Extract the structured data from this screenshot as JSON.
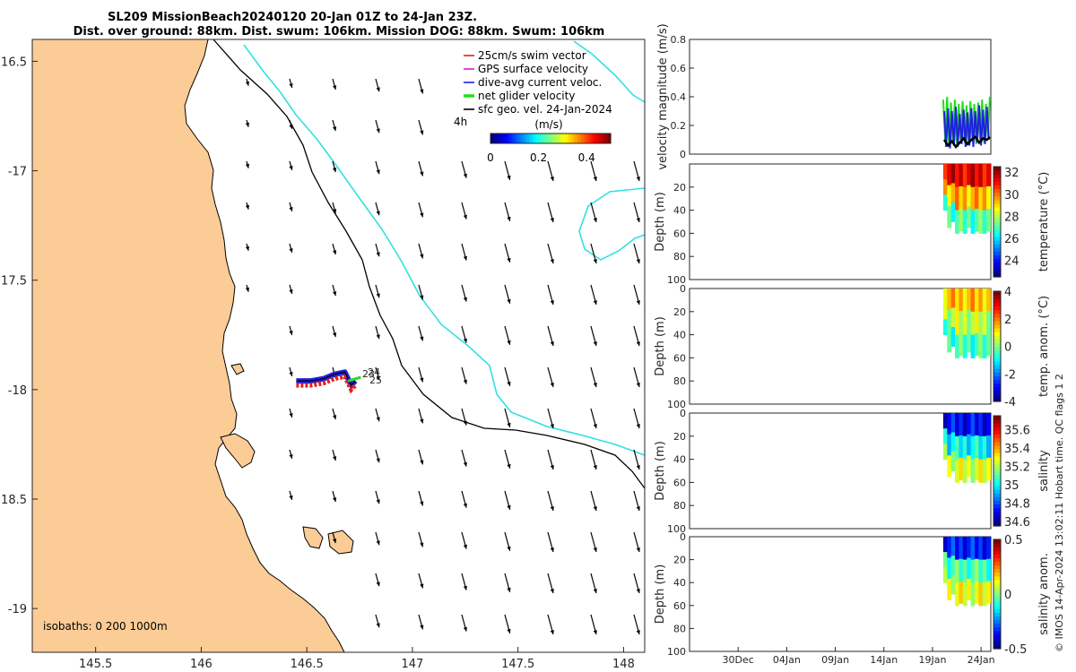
{
  "title": {
    "line1": "SL209 MissionBeach20240120 20-Jan 01Z to 24-Jan 23Z.",
    "line2": "Dist. over ground: 88km. Dist. swum: 106km. Mission DOG: 88km. Swum: 106km"
  },
  "colors": {
    "land": "#fccc96",
    "coast": "#000000",
    "isobath_cyan": "#33e0e0",
    "isobath_black": "#000000",
    "swim": "#e02020",
    "gps": "#d020d0",
    "dive": "#2020e0",
    "net": "#20e020",
    "geo": "#000000"
  },
  "chart_data": [
    {
      "type": "map",
      "xlim": [
        145.2,
        148.1
      ],
      "ylim": [
        -19.2,
        -16.4
      ],
      "ylim_display_labels": [
        "16.5",
        "-17",
        "17.5",
        "-18",
        "18.5",
        "-19"
      ],
      "ytick_values": [
        -16.5,
        -17,
        -17.5,
        -18,
        -18.5,
        -19
      ],
      "xtick_labels": [
        "145.5",
        "146",
        "146.5",
        "147",
        "147.5",
        "148"
      ],
      "xtick_values": [
        145.5,
        146,
        146.5,
        147,
        147.5,
        148
      ],
      "legend": [
        {
          "label": "25cm/s swim vector",
          "color_key": "swim"
        },
        {
          "label": "GPS surface velocity",
          "color_key": "gps"
        },
        {
          "label": "dive-avg current veloc.",
          "color_key": "dive"
        },
        {
          "label": "net glider velocity",
          "color_key": "net"
        },
        {
          "label": "sfc geo. vel. 24-Jan-2024",
          "color_key": "geo"
        }
      ],
      "legend_placement": "top-right",
      "colorbar": {
        "label": "(m/s)",
        "ticks": [
          "0",
          "0.2",
          "0.4"
        ],
        "range": [
          0,
          0.5
        ]
      },
      "annotation_4h": "4h",
      "track_labels": [
        "23",
        "24",
        "25"
      ],
      "isobath_note": "isobaths: 0   200  1000m",
      "vector_field": {
        "u": 0.08,
        "v": -0.22,
        "note": "sfc geo. vel. 24-Jan-2024"
      },
      "glider_track_lonlat": [
        [
          146.45,
          -17.96
        ],
        [
          146.52,
          -17.96
        ],
        [
          146.58,
          -17.95
        ],
        [
          146.63,
          -17.93
        ],
        [
          146.68,
          -17.92
        ],
        [
          146.71,
          -17.98
        ],
        [
          146.73,
          -17.96
        ]
      ]
    },
    {
      "type": "line",
      "ylabel": "velocity magnitude (m/s)",
      "ylim": [
        0,
        0.8
      ],
      "yticks": [
        "0",
        "0.2",
        "0.4",
        "0.6",
        "0.8"
      ],
      "xtick_labels": [
        "30Dec",
        "04Jan",
        "09Jan",
        "14Jan",
        "19Jan",
        "24Jan"
      ],
      "xtick_days": [
        -21,
        -16,
        -11,
        -6,
        -1,
        4
      ],
      "xlim_days": [
        -26,
        5
      ],
      "series": [
        {
          "color_key": "net",
          "x": [
            0.1,
            0.3,
            0.5,
            0.7,
            0.9,
            1.1,
            1.3,
            1.5,
            1.7,
            1.9,
            2.1,
            2.3,
            2.5,
            2.7,
            2.9,
            3.1,
            3.3,
            3.5,
            3.7,
            3.9,
            4.1,
            4.3,
            4.5,
            4.7,
            4.9
          ],
          "values": [
            0.38,
            0.1,
            0.4,
            0.05,
            0.36,
            0.08,
            0.38,
            0.06,
            0.35,
            0.1,
            0.37,
            0.08,
            0.34,
            0.06,
            0.37,
            0.1,
            0.35,
            0.07,
            0.36,
            0.1,
            0.38,
            0.08,
            0.35,
            0.12,
            0.4
          ]
        },
        {
          "color_key": "dive",
          "x": [
            0.2,
            0.4,
            0.6,
            0.8,
            1.0,
            1.2,
            1.4,
            1.6,
            1.8,
            2.0,
            2.2,
            2.4,
            2.6,
            2.8,
            3.0,
            3.2,
            3.4,
            3.6,
            3.8,
            4.0,
            4.2,
            4.4,
            4.6,
            4.8
          ],
          "values": [
            0.3,
            0.05,
            0.32,
            0.04,
            0.3,
            0.06,
            0.33,
            0.05,
            0.28,
            0.07,
            0.31,
            0.05,
            0.29,
            0.06,
            0.32,
            0.05,
            0.3,
            0.08,
            0.34,
            0.06,
            0.31,
            0.07,
            0.33,
            0.1
          ]
        },
        {
          "color_key": "geo",
          "x": [
            0.2,
            0.6,
            1.0,
            1.4,
            1.8,
            2.2,
            2.6,
            3.0,
            3.4,
            3.8,
            4.2,
            4.6,
            4.9
          ],
          "values": [
            0.1,
            0.06,
            0.09,
            0.05,
            0.08,
            0.11,
            0.07,
            0.1,
            0.12,
            0.08,
            0.11,
            0.1,
            0.12
          ]
        }
      ]
    },
    {
      "type": "heatmap",
      "ylabel": "Depth (m)",
      "yticks": [
        "20",
        "40",
        "60",
        "80",
        "100"
      ],
      "ylim": [
        0,
        100
      ],
      "colorbar": {
        "label": "temperature (°C)",
        "ticks": [
          "24",
          "26",
          "28",
          "30",
          "32"
        ],
        "range": [
          22.5,
          32.5
        ]
      },
      "max_depth_m": [
        40,
        55,
        50,
        60,
        58,
        60,
        55,
        60,
        58,
        60,
        60,
        58
      ],
      "values_top_to_bottom": [
        31.5,
        29.5,
        27.0
      ]
    },
    {
      "type": "heatmap",
      "ylabel": "Depth (m)",
      "yticks": [
        "0",
        "20",
        "40",
        "60",
        "80",
        "100"
      ],
      "ylim": [
        0,
        100
      ],
      "colorbar": {
        "label": "temp. anom. (°C)",
        "ticks": [
          "-4",
          "-2",
          "0",
          "2",
          "4"
        ],
        "range": [
          -4,
          4
        ]
      },
      "max_depth_m": [
        40,
        55,
        50,
        60,
        58,
        60,
        55,
        60,
        58,
        60,
        60,
        58
      ],
      "values_top_to_bottom": [
        1.5,
        0.5,
        -0.5
      ]
    },
    {
      "type": "heatmap",
      "ylabel": "Depth (m)",
      "yticks": [
        "0",
        "20",
        "40",
        "60",
        "80",
        "100"
      ],
      "ylim": [
        0,
        100
      ],
      "colorbar": {
        "label": "salinity",
        "ticks": [
          "34.6",
          "34.8",
          "35",
          "35.2",
          "35.4",
          "35.6"
        ],
        "range": [
          34.55,
          35.75
        ]
      },
      "max_depth_m": [
        40,
        55,
        50,
        60,
        58,
        60,
        55,
        60,
        58,
        60,
        60,
        58
      ],
      "values_top_to_bottom": [
        34.7,
        35.0,
        35.25
      ]
    },
    {
      "type": "heatmap",
      "ylabel": "Depth (m)",
      "yticks": [
        "0",
        "20",
        "40",
        "60",
        "80",
        "100"
      ],
      "ylim": [
        0,
        100
      ],
      "xtick_labels": [
        "30Dec",
        "04Jan",
        "09Jan",
        "14Jan",
        "19Jan",
        "24Jan"
      ],
      "colorbar": {
        "label": "salinity anom.",
        "ticks": [
          "-0.5",
          "0",
          "0.5"
        ],
        "range": [
          -0.5,
          0.5
        ]
      },
      "max_depth_m": [
        40,
        55,
        50,
        60,
        58,
        60,
        55,
        60,
        58,
        60,
        60,
        58
      ],
      "values_top_to_bottom": [
        -0.35,
        -0.05,
        0.1
      ]
    }
  ],
  "credit": "© IMOS 14-Apr-2024 13:02:11 Hobart time. QC flags 1  2"
}
